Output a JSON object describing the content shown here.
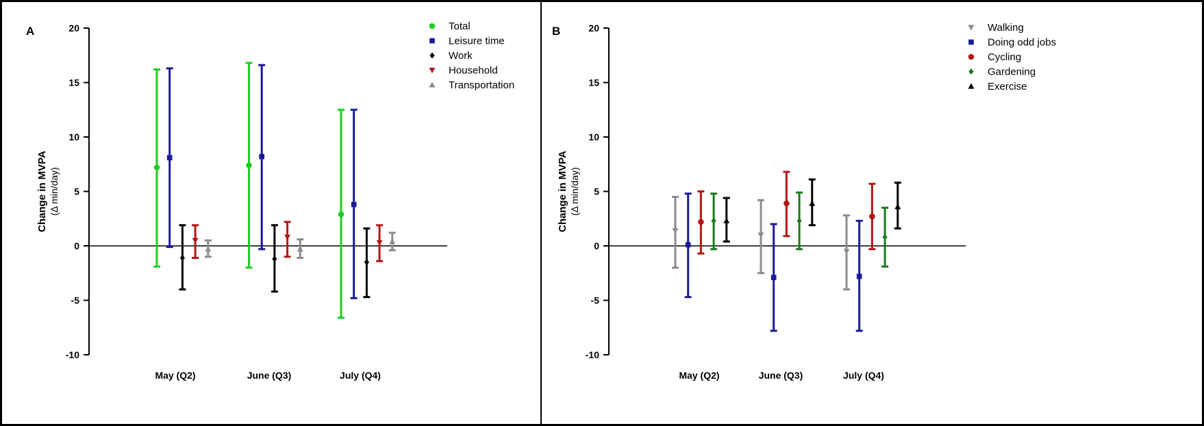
{
  "chart_data": [
    {
      "panel_label": "A",
      "type": "scatter",
      "ylabel_bold": "Change in MVPA",
      "ylabel_unit": "(Δ min/day)",
      "ylim": [
        -10,
        20
      ],
      "yticks": [
        20,
        15,
        10,
        5,
        0,
        -5,
        -10
      ],
      "categories": [
        "May (Q2)",
        "June (Q3)",
        "July (Q4)"
      ],
      "legend_position": "top-right",
      "series": [
        {
          "name": "Total",
          "color": "#22cc22",
          "marker": "circle",
          "values": [
            7.2,
            7.4,
            2.9
          ],
          "lower": [
            -1.9,
            -2.0,
            -6.6
          ],
          "upper": [
            16.2,
            16.8,
            12.5
          ]
        },
        {
          "name": "Leisure time",
          "color": "#1a1a9a",
          "marker": "square",
          "values": [
            8.1,
            8.2,
            3.8
          ],
          "lower": [
            -0.1,
            -0.3,
            -4.8
          ],
          "upper": [
            16.3,
            16.6,
            12.5
          ]
        },
        {
          "name": "Work",
          "color": "#000000",
          "marker": "diamond",
          "values": [
            -1.1,
            -1.2,
            -1.5
          ],
          "lower": [
            -4.0,
            -4.2,
            -4.7
          ],
          "upper": [
            1.9,
            1.9,
            1.6
          ]
        },
        {
          "name": "Household",
          "color": "#b01818",
          "marker": "triangle-down",
          "values": [
            0.5,
            0.8,
            0.3
          ],
          "lower": [
            -1.1,
            -1.0,
            -1.4
          ],
          "upper": [
            1.9,
            2.2,
            1.9
          ]
        },
        {
          "name": "Transportation",
          "color": "#8c8c8c",
          "marker": "triangle-up",
          "values": [
            -0.3,
            -0.3,
            0.4
          ],
          "lower": [
            -1.0,
            -1.1,
            -0.4
          ],
          "upper": [
            0.5,
            0.6,
            1.2
          ]
        }
      ]
    },
    {
      "panel_label": "B",
      "type": "scatter",
      "ylabel_bold": "Change in MVPA",
      "ylabel_unit": "(Δ min/day)",
      "ylim": [
        -10,
        20
      ],
      "yticks": [
        20,
        15,
        10,
        5,
        0,
        -5,
        -10
      ],
      "categories": [
        "May (Q2)",
        "June (Q3)",
        "July (Q4)"
      ],
      "legend_position": "top-right",
      "series": [
        {
          "name": "Walking",
          "color": "#8c8c8c",
          "marker": "triangle-down",
          "values": [
            1.4,
            1.0,
            -0.5
          ],
          "lower": [
            -2.0,
            -2.5,
            -4.0
          ],
          "upper": [
            4.5,
            4.2,
            2.8
          ]
        },
        {
          "name": "Doing odd jobs",
          "color": "#1a1a9a",
          "marker": "square",
          "values": [
            0.1,
            -2.9,
            -2.8
          ],
          "lower": [
            -4.7,
            -7.8,
            -7.8
          ],
          "upper": [
            4.8,
            2.0,
            2.3
          ]
        },
        {
          "name": "Cycling",
          "color": "#b01818",
          "marker": "circle",
          "values": [
            2.2,
            3.9,
            2.7
          ],
          "lower": [
            -0.7,
            0.9,
            -0.3
          ],
          "upper": [
            5.0,
            6.8,
            5.7
          ]
        },
        {
          "name": "Gardening",
          "color": "#1a7a1a",
          "marker": "diamond",
          "values": [
            2.3,
            2.3,
            0.8
          ],
          "lower": [
            -0.3,
            -0.3,
            -1.9
          ],
          "upper": [
            4.8,
            4.9,
            3.5
          ]
        },
        {
          "name": "Exercise",
          "color": "#000000",
          "marker": "triangle-up",
          "values": [
            2.3,
            3.9,
            3.6
          ],
          "lower": [
            0.4,
            1.9,
            1.6
          ],
          "upper": [
            4.4,
            6.1,
            5.8
          ]
        }
      ]
    }
  ]
}
